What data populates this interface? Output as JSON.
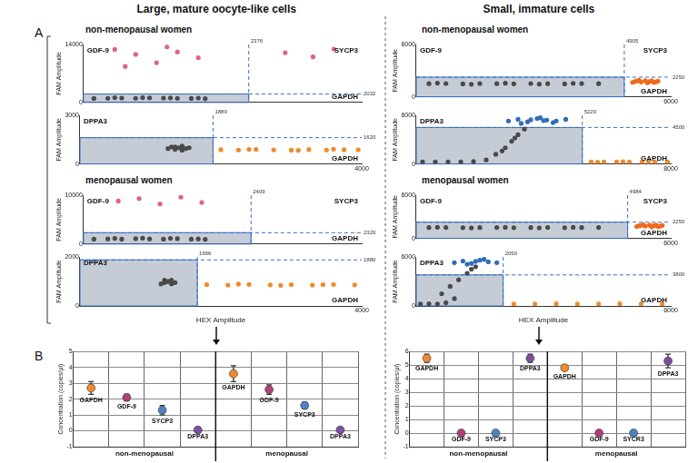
{
  "figure": {
    "column_titles": [
      "Large, mature oocyte-like cells",
      "Small, immature cells"
    ],
    "panel_letters": [
      "A",
      "B"
    ]
  },
  "chart_data": [
    {
      "type": "scatter",
      "subtitle": "non-menopausal women",
      "ylabel": "FAM Amplitude",
      "xlim": [
        0,
        4000
      ],
      "xticks": [],
      "ylim": [
        0,
        14000
      ],
      "yticks": [
        0,
        14000
      ],
      "thresholds": {
        "x": 2376,
        "y": 2032
      },
      "quadrant_labels": {
        "upper_left": "GDF-9",
        "upper_right": "SYCP3",
        "lower_right": "GAPDH"
      },
      "series": [
        {
          "color": "#4a4a4a",
          "x": [
            150,
            350,
            550,
            750,
            950,
            1150,
            1350,
            1550,
            1750,
            450,
            850,
            1250,
            1650
          ],
          "values": [
            950,
            1000,
            1050,
            1000,
            1100,
            1050,
            1000,
            950,
            900,
            1150,
            1150,
            1100,
            1050
          ]
        },
        {
          "color": "#e0608f",
          "x": [
            450,
            750,
            1050,
            1350,
            1650,
            600,
            1200
          ],
          "values": [
            12800,
            11600,
            9600,
            12200,
            10800,
            8700,
            13400
          ]
        },
        {
          "color": "#e0608f",
          "x": [
            2900,
            3300,
            3600
          ],
          "values": [
            12000,
            11000,
            12900
          ]
        }
      ]
    },
    {
      "type": "scatter",
      "ylabel": "FAM Amplitude",
      "xlim": [
        0,
        4000
      ],
      "xticks": [
        4000
      ],
      "ylim": [
        0,
        3000
      ],
      "yticks": [
        0,
        3000
      ],
      "thresholds": {
        "x": 1889,
        "y": 1620
      },
      "quadrant_labels": {
        "upper_left": "DPPA3",
        "lower_right": "GAPDH"
      },
      "series": [
        {
          "color": "#4a4a4a",
          "x": [
            1250,
            1300,
            1350,
            1400,
            1450,
            1500,
            1550,
            1350,
            1450
          ],
          "values": [
            950,
            1050,
            900,
            1000,
            1100,
            950,
            1000,
            1050,
            850
          ]
        },
        {
          "color": "#ef8a2c",
          "x": [
            2000,
            2250,
            2500,
            2750,
            3000,
            3250,
            3500,
            3750,
            3950,
            2400,
            3100,
            3600
          ],
          "values": [
            880,
            860,
            900,
            870,
            850,
            890,
            860,
            880,
            870,
            900,
            840,
            910
          ]
        }
      ]
    },
    {
      "type": "scatter",
      "subtitle": "menopausal women",
      "ylabel": "FAM Amplitude",
      "xlim": [
        0,
        4000
      ],
      "xticks": [],
      "ylim": [
        0,
        10000
      ],
      "yticks": [
        0,
        10000
      ],
      "thresholds": {
        "x": 2409,
        "y": 2320
      },
      "quadrant_labels": {
        "upper_left": "GDF-9",
        "upper_right": "SYCP3",
        "lower_right": "GAPDH"
      },
      "series": [
        {
          "color": "#4a4a4a",
          "x": [
            150,
            350,
            550,
            750,
            950,
            1150,
            1350,
            1550,
            1750,
            450,
            850,
            1250,
            1650
          ],
          "values": [
            1000,
            1050,
            1000,
            1100,
            1050,
            1000,
            1100,
            1000,
            950,
            1150,
            1200,
            1150,
            1050
          ]
        },
        {
          "color": "#e0608f",
          "x": [
            500,
            800,
            1100,
            1400,
            1700
          ],
          "values": [
            8800,
            9300,
            8200,
            9600,
            8500
          ]
        }
      ]
    },
    {
      "type": "scatter",
      "ylabel": "FAM Amplitude",
      "xlabel": "HEX Amplitude",
      "xlim": [
        0,
        4000
      ],
      "xticks": [
        4000
      ],
      "ylim": [
        0,
        2000
      ],
      "yticks": [
        0,
        2000
      ],
      "thresholds": {
        "x": 1666,
        "y": 1880
      },
      "quadrant_labels": {
        "upper_left": "DPPA3",
        "lower_right": "GAPDH"
      },
      "series": [
        {
          "color": "#4a4a4a",
          "x": [
            1150,
            1200,
            1250,
            1300,
            1350,
            1200,
            1300,
            1250
          ],
          "values": [
            900,
            950,
            1000,
            1050,
            950,
            1050,
            900,
            1000
          ]
        },
        {
          "color": "#ef8a2c",
          "x": [
            1800,
            2100,
            2400,
            2700,
            3000,
            3300,
            3600,
            3900,
            2250,
            2850,
            3450
          ],
          "values": [
            870,
            850,
            880,
            860,
            870,
            850,
            880,
            860,
            890,
            840,
            870
          ]
        }
      ]
    },
    {
      "type": "scatter",
      "subtitle": "non-menopausal women",
      "ylabel": "FAM Amplitude",
      "xlim": [
        0,
        6000
      ],
      "xticks": [
        6000
      ],
      "ylim": [
        0,
        6000
      ],
      "yticks": [
        0,
        6000
      ],
      "thresholds": {
        "x": 4905,
        "y": 2250
      },
      "quadrant_labels": {
        "upper_left": "GDF-9",
        "upper_right": "SYCP3",
        "lower_right": "GAPDH"
      },
      "series": [
        {
          "color": "#4a4a4a",
          "x": [
            300,
            700,
            1100,
            1500,
            1900,
            2300,
            2700,
            3100,
            3500,
            3900,
            4300,
            500,
            1300,
            2100,
            2900,
            3700
          ],
          "values": [
            1500,
            1520,
            1480,
            1510,
            1500,
            1490,
            1520,
            1500,
            1480,
            1510,
            1500,
            1560,
            1440,
            1550,
            1450,
            1540
          ]
        },
        {
          "color": "#ef6a1c",
          "x": [
            5100,
            5200,
            5300,
            5400,
            5500,
            5600,
            5700,
            5250,
            5450,
            5650,
            5150,
            5550
          ],
          "values": [
            1650,
            1800,
            1700,
            1850,
            1750,
            1650,
            1800,
            1900,
            1600,
            1700,
            1750,
            1850
          ]
        }
      ]
    },
    {
      "type": "scatter",
      "ylabel": "FAM Amplitude",
      "xlim": [
        0,
        8000
      ],
      "xticks": [
        8000
      ],
      "ylim": [
        0,
        6000
      ],
      "yticks": [
        0,
        6000
      ],
      "thresholds": {
        "x": 5220,
        "y": 4500
      },
      "quadrant_labels": {
        "upper_left": "DPPA3",
        "lower_right": "GAPDH"
      },
      "series": [
        {
          "color": "#4a4a4a",
          "x": [
            200,
            600,
            1000,
            1400,
            1800,
            2200,
            2500,
            2800,
            3000,
            3200,
            3400,
            2700,
            3100
          ],
          "values": [
            250,
            250,
            260,
            240,
            300,
            500,
            1200,
            2000,
            2800,
            3600,
            4300,
            1600,
            3200
          ]
        },
        {
          "color": "#2f6db5",
          "x": [
            2900,
            3200,
            3500,
            3800,
            4100,
            4400,
            4700,
            3300,
            3900,
            4300,
            3600,
            4000
          ],
          "values": [
            5300,
            5500,
            5200,
            5600,
            5400,
            5300,
            5500,
            5000,
            5700,
            5100,
            5450,
            5350
          ]
        },
        {
          "color": "#ef8a2c",
          "x": [
            5500,
            5900,
            6300,
            6700,
            7100,
            7500,
            7900,
            5700,
            6500,
            7300
          ],
          "values": [
            250,
            240,
            260,
            250,
            240,
            260,
            250,
            230,
            270,
            240
          ]
        }
      ]
    },
    {
      "type": "scatter",
      "subtitle": "menopausal women",
      "ylabel": "FAM Amplitude",
      "xlim": [
        0,
        6000
      ],
      "xticks": [
        6000
      ],
      "ylim": [
        0,
        6000
      ],
      "yticks": [
        0,
        6000
      ],
      "thresholds": {
        "x": 4984,
        "y": 2250
      },
      "quadrant_labels": {
        "upper_left": "GDF-9",
        "upper_right": "SYCP3",
        "lower_right": "GAPDH"
      },
      "series": [
        {
          "color": "#4a4a4a",
          "x": [
            300,
            700,
            1100,
            1500,
            1900,
            2300,
            2700,
            3100,
            3500,
            3900,
            4300,
            500,
            1300,
            2100,
            2900,
            3700
          ],
          "values": [
            1500,
            1510,
            1490,
            1500,
            1520,
            1480,
            1500,
            1510,
            1490,
            1500,
            1520,
            1550,
            1450,
            1540,
            1460,
            1530
          ]
        },
        {
          "color": "#ef6a1c",
          "x": [
            5200,
            5300,
            5400,
            5500,
            5600,
            5700,
            5800,
            5350,
            5550,
            5750,
            5250,
            5650
          ],
          "values": [
            1650,
            1800,
            1700,
            1850,
            1750,
            1650,
            1800,
            1900,
            1600,
            1700,
            1750,
            1850
          ]
        }
      ]
    },
    {
      "type": "scatter",
      "ylabel": "FAM Amplitude",
      "xlabel": "HEX Amplitude",
      "xlim": [
        0,
        6000
      ],
      "xticks": [
        6000
      ],
      "ylim": [
        0,
        6000
      ],
      "yticks": [
        0,
        6000
      ],
      "thresholds": {
        "x": 2050,
        "y": 3800
      },
      "quadrant_labels": {
        "upper_left": "DPPA3",
        "lower_right": "GAPDH"
      },
      "series": [
        {
          "color": "#4a4a4a",
          "x": [
            100,
            300,
            500,
            700,
            900,
            600,
            800,
            1000,
            1200,
            1300,
            1400
          ],
          "values": [
            250,
            260,
            250,
            400,
            900,
            1500,
            2400,
            3200,
            4000,
            4500,
            4800
          ]
        },
        {
          "color": "#2f6db5",
          "x": [
            900,
            1100,
            1300,
            1500,
            1700,
            1900,
            1200,
            1600,
            1400
          ],
          "values": [
            5300,
            5500,
            5200,
            5600,
            5400,
            5300,
            5100,
            5700,
            5450
          ]
        },
        {
          "color": "#ef8a2c",
          "x": [
            2300,
            2800,
            3300,
            3800,
            4300,
            4800,
            5300,
            5800
          ],
          "values": [
            250,
            240,
            260,
            250,
            240,
            260,
            250,
            240
          ]
        }
      ]
    },
    {
      "type": "dot",
      "ylabel": "Concentration (copies/μl)",
      "categories": [
        "GAPDH",
        "GDF-9",
        "SYCP3",
        "DPPA3",
        "GAPDH",
        "GDF-9",
        "SYCP3",
        "DPPA3"
      ],
      "groups": [
        "non-menopausal",
        "menopausal"
      ],
      "values": [
        2.7,
        2.1,
        1.3,
        0.05,
        3.6,
        2.6,
        1.6,
        0.05
      ],
      "errors": [
        0.4,
        0.2,
        0.3,
        0.05,
        0.5,
        0.3,
        0.2,
        0.05
      ],
      "colors": [
        "#ef8a2c",
        "#b0407a",
        "#4f80c0",
        "#7b4ea0",
        "#ef8a2c",
        "#b0407a",
        "#4f80c0",
        "#7b4ea0"
      ],
      "ylim": [
        -1,
        5
      ],
      "yticks": [
        -1,
        0,
        1,
        2,
        3,
        4,
        5
      ],
      "grid": true
    },
    {
      "type": "dot",
      "ylabel": "Concentration (copies/μl)",
      "categories": [
        "GAPDH",
        "GDF-9",
        "SYCP3",
        "DPPA3",
        "GAPDH",
        "GDF-9",
        "SYCR3",
        "DPPA3"
      ],
      "groups": [
        "non-menopausal",
        "menopausal"
      ],
      "values": [
        5.5,
        0,
        0,
        5.5,
        4.8,
        0,
        0,
        5.3
      ],
      "errors": [
        0.3,
        0.05,
        0.05,
        0.3,
        0.2,
        0.05,
        0.05,
        0.5
      ],
      "colors": [
        "#ef8a2c",
        "#b0407a",
        "#4f80c0",
        "#7b4ea0",
        "#ef8a2c",
        "#b0407a",
        "#4f80c0",
        "#7b4ea0"
      ],
      "ylim": [
        -1,
        6
      ],
      "yticks": [
        -1,
        0,
        1,
        2,
        3,
        4,
        5,
        6
      ],
      "grid": true
    }
  ]
}
